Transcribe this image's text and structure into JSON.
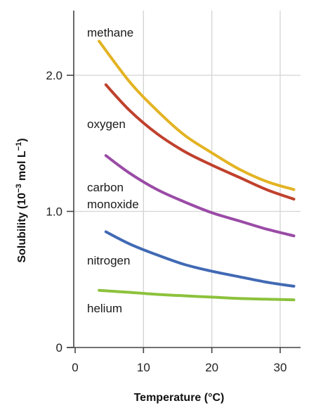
{
  "chart_data": {
    "type": "line",
    "title": "",
    "xlabel": "Temperature (°C)",
    "ylabel_parts": {
      "prefix": "Solubility (10",
      "exp1": "−3",
      "middle": " mol L",
      "exp2": "−1",
      "suffix": ")"
    },
    "xlim": [
      -1,
      33
    ],
    "ylim": [
      0,
      2.45
    ],
    "x_ticks": [
      {
        "value": 0,
        "label": "0"
      },
      {
        "value": 10,
        "label": "10"
      },
      {
        "value": 20,
        "label": "20"
      },
      {
        "value": 30,
        "label": "30"
      }
    ],
    "y_ticks": [
      {
        "value": 0,
        "label": "0"
      },
      {
        "value": 1.0,
        "label": "1.0"
      },
      {
        "value": 2.0,
        "label": "2.0"
      }
    ],
    "grid": true,
    "series": [
      {
        "name": "methane",
        "label_lines": [
          "methane"
        ],
        "color": "#e3b322",
        "x": [
          3.5,
          8,
          12,
          16,
          20,
          24,
          28,
          32
        ],
        "y": [
          2.25,
          1.95,
          1.74,
          1.56,
          1.43,
          1.31,
          1.22,
          1.16
        ]
      },
      {
        "name": "oxygen",
        "label_lines": [
          "oxygen"
        ],
        "color": "#c0412d",
        "x": [
          4.5,
          8,
          12,
          16,
          20,
          24,
          28,
          32
        ],
        "y": [
          1.93,
          1.74,
          1.57,
          1.44,
          1.34,
          1.25,
          1.16,
          1.09
        ]
      },
      {
        "name": "carbon monoxide",
        "label_lines": [
          "carbon",
          "monoxide"
        ],
        "color": "#9a4ba6",
        "x": [
          4.5,
          8,
          12,
          16,
          20,
          24,
          28,
          32
        ],
        "y": [
          1.41,
          1.28,
          1.16,
          1.07,
          0.99,
          0.93,
          0.87,
          0.82
        ]
      },
      {
        "name": "nitrogen",
        "label_lines": [
          "nitrogen"
        ],
        "color": "#4169b4",
        "x": [
          4.5,
          8,
          12,
          16,
          20,
          24,
          28,
          32
        ],
        "y": [
          0.85,
          0.76,
          0.68,
          0.61,
          0.56,
          0.52,
          0.48,
          0.45
        ]
      },
      {
        "name": "helium",
        "label_lines": [
          "helium"
        ],
        "color": "#8cc23c",
        "x": [
          3.5,
          8,
          12,
          16,
          20,
          24,
          28,
          32
        ],
        "y": [
          0.42,
          0.405,
          0.39,
          0.38,
          0.37,
          0.36,
          0.355,
          0.35
        ]
      }
    ]
  }
}
